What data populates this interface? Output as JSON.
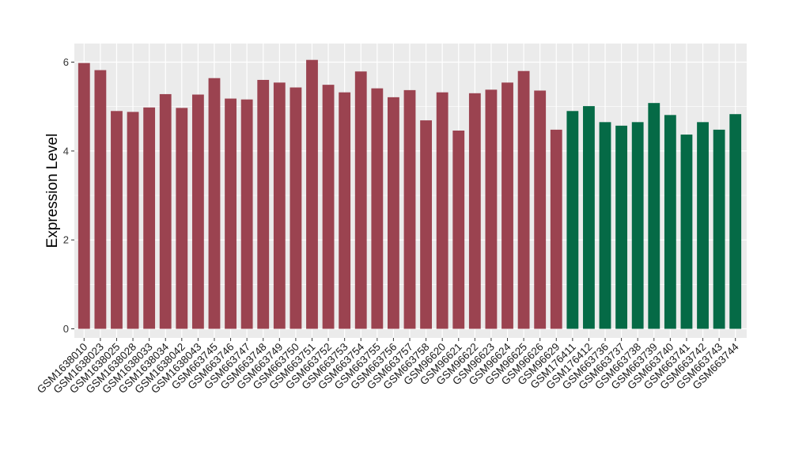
{
  "chart_data": {
    "type": "bar",
    "xlabel": "",
    "ylabel": "Expression Level",
    "ylim": [
      0,
      6.2
    ],
    "y_ticks": [
      0,
      2,
      4,
      6
    ],
    "grid": true,
    "legend": "none",
    "colors": {
      "group_1": "#9b4350",
      "group_2": "#056a46",
      "panel_background": "#ebebeb",
      "grid": "#ffffff"
    },
    "categories": [
      "GSM1638010",
      "GSM1638023",
      "GSM1638025",
      "GSM1638028",
      "GSM1638033",
      "GSM1638034",
      "GSM1638042",
      "GSM1638043",
      "GSM663745",
      "GSM663746",
      "GSM663747",
      "GSM663748",
      "GSM663749",
      "GSM663750",
      "GSM663751",
      "GSM663752",
      "GSM663753",
      "GSM663754",
      "GSM663755",
      "GSM663756",
      "GSM663757",
      "GSM663758",
      "GSM96620",
      "GSM96621",
      "GSM96622",
      "GSM96623",
      "GSM96624",
      "GSM96625",
      "GSM96626",
      "GSM96629",
      "GSM176411",
      "GSM176412",
      "GSM663736",
      "GSM663737",
      "GSM663738",
      "GSM663739",
      "GSM663740",
      "GSM663741",
      "GSM663742",
      "GSM663743",
      "GSM663744"
    ],
    "values": [
      5.98,
      5.82,
      4.9,
      4.88,
      4.98,
      5.28,
      4.97,
      5.27,
      5.64,
      5.18,
      5.16,
      5.6,
      5.54,
      5.43,
      6.05,
      5.49,
      5.32,
      5.79,
      5.41,
      5.21,
      5.37,
      4.69,
      5.32,
      4.46,
      5.3,
      5.38,
      5.54,
      5.8,
      5.36,
      4.48,
      4.9,
      5.01,
      4.65,
      4.57,
      4.65,
      5.08,
      4.81,
      4.37,
      4.65,
      4.48,
      4.83
    ],
    "groups": [
      1,
      1,
      1,
      1,
      1,
      1,
      1,
      1,
      1,
      1,
      1,
      1,
      1,
      1,
      1,
      1,
      1,
      1,
      1,
      1,
      1,
      1,
      1,
      1,
      1,
      1,
      1,
      1,
      1,
      1,
      2,
      2,
      2,
      2,
      2,
      2,
      2,
      2,
      2,
      2,
      2
    ]
  }
}
